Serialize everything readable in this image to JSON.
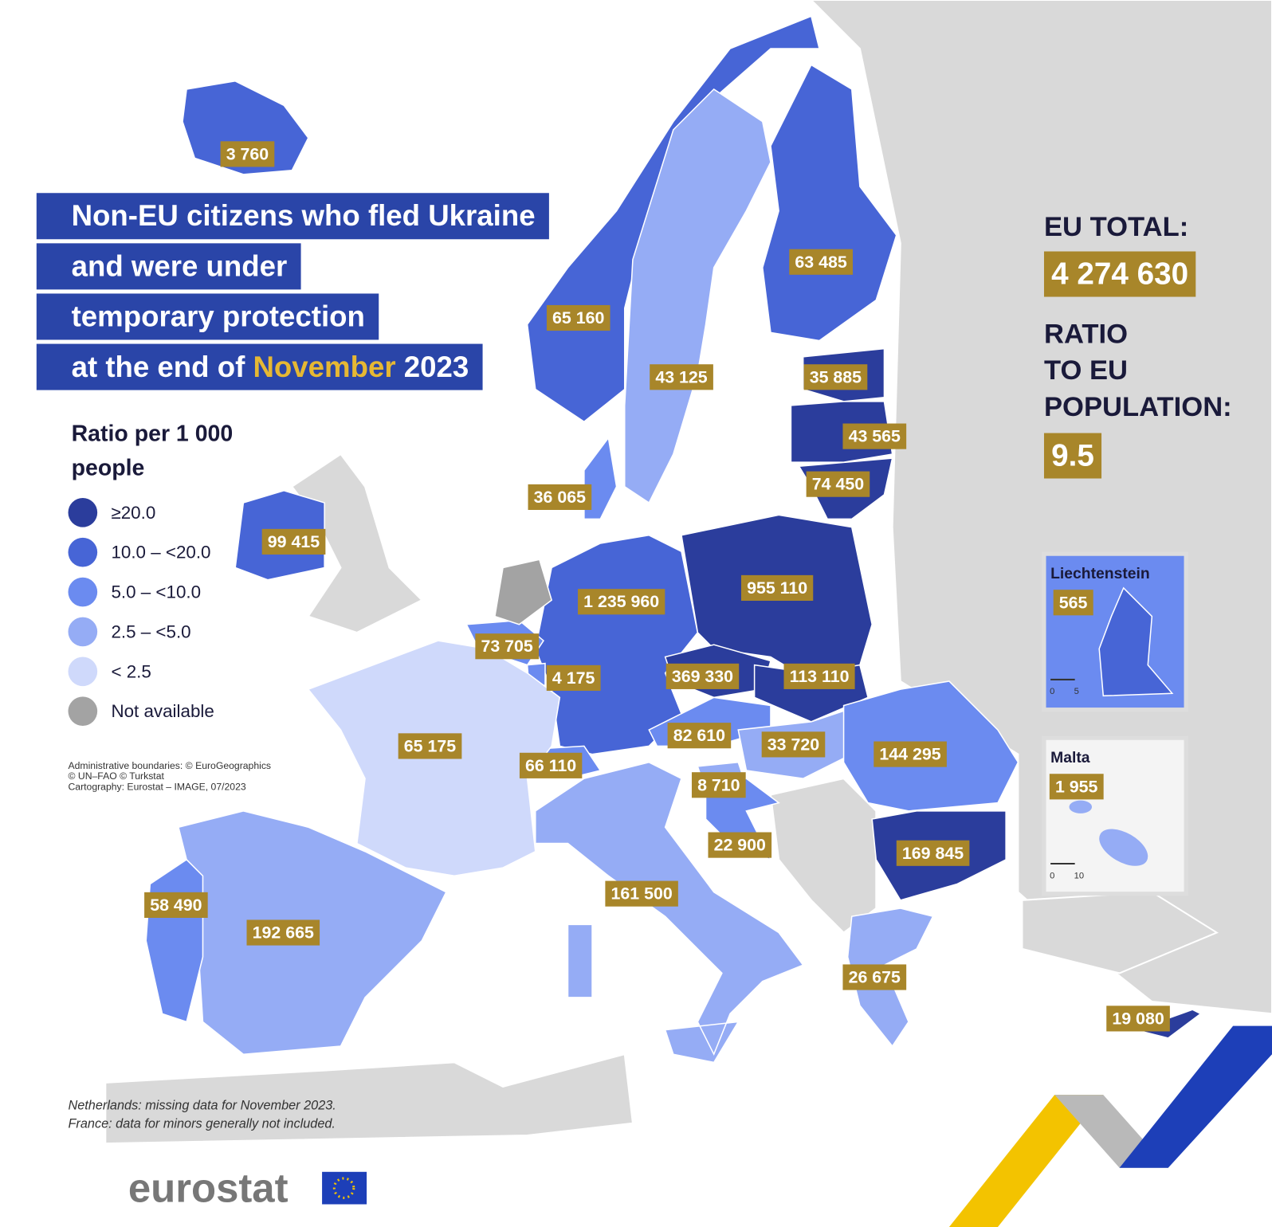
{
  "title": {
    "lines": [
      "Non-EU citizens who fled Ukraine",
      "and were under",
      "temporary protection"
    ],
    "last_line": {
      "before": "at the end of ",
      "highlight": "November",
      "after": " 2023"
    }
  },
  "legend": {
    "title": [
      "Ratio per 1 000",
      "people"
    ],
    "items": [
      {
        "label": "≥20.0",
        "color": "#2b3d9c"
      },
      {
        "label": "10.0 – <20.0",
        "color": "#4765d6"
      },
      {
        "label": "5.0 – <10.0",
        "color": "#6b8bf0"
      },
      {
        "label": "2.5 – <5.0",
        "color": "#95acf5"
      },
      {
        "label": "< 2.5",
        "color": "#cfd9fb"
      },
      {
        "label": "Not available",
        "color": "#a3a3a3"
      }
    ]
  },
  "credits": [
    "Administrative boundaries: © EuroGeographics",
    "© UN–FAO © Turkstat",
    "Cartography: Eurostat – IMAGE, 07/2023"
  ],
  "notes": [
    "Netherlands: missing data for November 2023.",
    "France: data for minors generally not included."
  ],
  "summary": {
    "total_label": "EU TOTAL:",
    "total": "4 274 630",
    "ratio_label": [
      "RATIO",
      "TO EU",
      "POPULATION:"
    ],
    "ratio": "9.5"
  },
  "countries": [
    {
      "value": "3 760",
      "class": 1
    },
    {
      "value": "65 160",
      "class": 1
    },
    {
      "value": "43 125",
      "class": 3
    },
    {
      "value": "63 485",
      "class": 1
    },
    {
      "value": "35 885",
      "class": 0
    },
    {
      "value": "43 565",
      "class": 0
    },
    {
      "value": "74 450",
      "class": 0
    },
    {
      "value": "36 065",
      "class": 2
    },
    {
      "value": "99 415",
      "class": 1
    },
    {
      "value": "1 235 960",
      "class": 1
    },
    {
      "value": "955 110",
      "class": 0
    },
    {
      "value": "73 705",
      "class": 2
    },
    {
      "value": "4 175",
      "class": 2
    },
    {
      "value": "369 330",
      "class": 0
    },
    {
      "value": "113 110",
      "class": 0
    },
    {
      "value": "82 610",
      "class": 2
    },
    {
      "value": "33 720",
      "class": 3
    },
    {
      "value": "144 295",
      "class": 2
    },
    {
      "value": "169 845",
      "class": 0
    },
    {
      "value": "8 710",
      "class": 3
    },
    {
      "value": "22 900",
      "class": 2
    },
    {
      "value": "66 110",
      "class": 2
    },
    {
      "value": "65 175",
      "class": 4
    },
    {
      "value": "161 500",
      "class": 3
    },
    {
      "value": "192 665",
      "class": 3
    },
    {
      "value": "58 490",
      "class": 2
    },
    {
      "value": "26 675",
      "class": 3
    },
    {
      "value": "19 080",
      "class": 0
    },
    {
      "class": 5
    }
  ],
  "insets": [
    {
      "name": "Liechtenstein",
      "value": "565",
      "class": 1,
      "scale": [
        "0",
        "5"
      ]
    },
    {
      "name": "Malta",
      "value": "1 955",
      "class": 3,
      "scale": [
        "0",
        "10"
      ]
    }
  ],
  "logo": "eurostat"
}
